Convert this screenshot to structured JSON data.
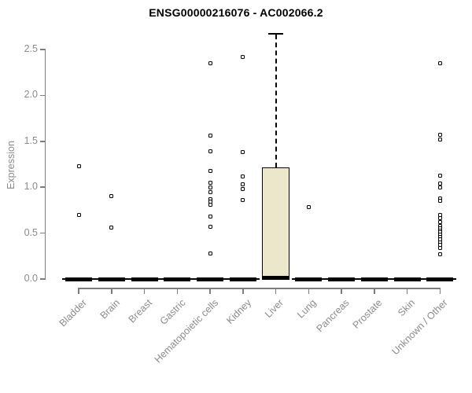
{
  "chart_data": {
    "type": "boxplot",
    "title": "ENSG00000216076 - AC002066.2",
    "ylabel": "Expression",
    "ylim": [
      0,
      2.7
    ],
    "yticks": [
      "0.0",
      "0.5",
      "1.0",
      "1.5",
      "2.0",
      "2.5"
    ],
    "grid": "off",
    "legend": "none",
    "colors": {
      "box_fill": "#ece7cb",
      "box_border": "#000000",
      "axis_text": "#8a8a8a",
      "axis_line": "#7d7d7d",
      "title": "#000000"
    },
    "categories": [
      {
        "label": "Bladder",
        "box": {
          "whisker_low": 0,
          "q1": 0,
          "median": 0,
          "q3": 0,
          "whisker_high": 0
        },
        "outliers": [
          1.23,
          0.7
        ]
      },
      {
        "label": "Brain",
        "box": {
          "whisker_low": 0,
          "q1": 0,
          "median": 0,
          "q3": 0,
          "whisker_high": 0
        },
        "outliers": [
          0.9,
          0.56
        ]
      },
      {
        "label": "Breast",
        "box": {
          "whisker_low": 0,
          "q1": 0,
          "median": 0,
          "q3": 0,
          "whisker_high": 0
        },
        "outliers": []
      },
      {
        "label": "Gastric",
        "box": {
          "whisker_low": 0,
          "q1": 0,
          "median": 0,
          "q3": 0,
          "whisker_high": 0
        },
        "outliers": []
      },
      {
        "label": "Hematopoietic cells",
        "box": {
          "whisker_low": 0,
          "q1": 0,
          "median": 0,
          "q3": 0,
          "whisker_high": 0
        },
        "outliers": [
          2.35,
          1.56,
          1.39,
          1.18,
          1.05,
          1.0,
          0.95,
          0.87,
          0.84,
          0.81,
          0.68,
          0.57,
          0.28
        ]
      },
      {
        "label": "Kidney",
        "box": {
          "whisker_low": 0,
          "q1": 0,
          "median": 0,
          "q3": 0,
          "whisker_high": 0
        },
        "outliers": [
          2.42,
          1.38,
          1.12,
          1.03,
          0.98,
          0.86
        ]
      },
      {
        "label": "Liver",
        "box": {
          "whisker_low": 0,
          "q1": 0,
          "median": 0,
          "q3": 1.22,
          "whisker_high": 2.67
        },
        "outliers": []
      },
      {
        "label": "Lung",
        "box": {
          "whisker_low": 0,
          "q1": 0,
          "median": 0,
          "q3": 0,
          "whisker_high": 0
        },
        "outliers": [
          0.78
        ]
      },
      {
        "label": "Pancreas",
        "box": {
          "whisker_low": 0,
          "q1": 0,
          "median": 0,
          "q3": 0,
          "whisker_high": 0
        },
        "outliers": []
      },
      {
        "label": "Prostate",
        "box": {
          "whisker_low": 0,
          "q1": 0,
          "median": 0,
          "q3": 0,
          "whisker_high": 0
        },
        "outliers": []
      },
      {
        "label": "Skin",
        "box": {
          "whisker_low": 0,
          "q1": 0,
          "median": 0,
          "q3": 0,
          "whisker_high": 0
        },
        "outliers": []
      },
      {
        "label": "Unknown / Other",
        "box": {
          "whisker_low": 0,
          "q1": 0,
          "median": 0,
          "q3": 0,
          "whisker_high": 0
        },
        "outliers": [
          2.35,
          1.57,
          1.52,
          1.13,
          1.04,
          1.0,
          0.88,
          0.85,
          0.7,
          0.66,
          0.62,
          0.58,
          0.55,
          0.53,
          0.51,
          0.48,
          0.46,
          0.43,
          0.4,
          0.37,
          0.34,
          0.27
        ]
      }
    ]
  }
}
